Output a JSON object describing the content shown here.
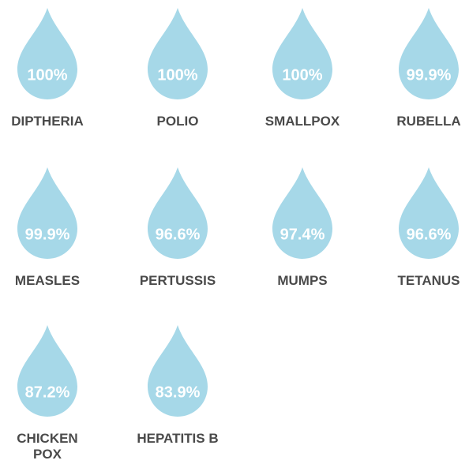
{
  "items": [
    {
      "name": "DIPTHERIA",
      "value": "100%"
    },
    {
      "name": "POLIO",
      "value": "100%"
    },
    {
      "name": "SMALLPOX",
      "value": "100%"
    },
    {
      "name": "RUBELLA",
      "value": "99.9%"
    },
    {
      "name": "MEASLES",
      "value": "99.9%"
    },
    {
      "name": "PERTUSSIS",
      "value": "96.6%"
    },
    {
      "name": "MUMPS",
      "value": "97.4%"
    },
    {
      "name": "TETANUS",
      "value": "96.6%"
    },
    {
      "name": "CHICKEN POX",
      "value": "87.2%"
    },
    {
      "name": "HEPATITIS B",
      "value": "83.9%"
    }
  ]
}
